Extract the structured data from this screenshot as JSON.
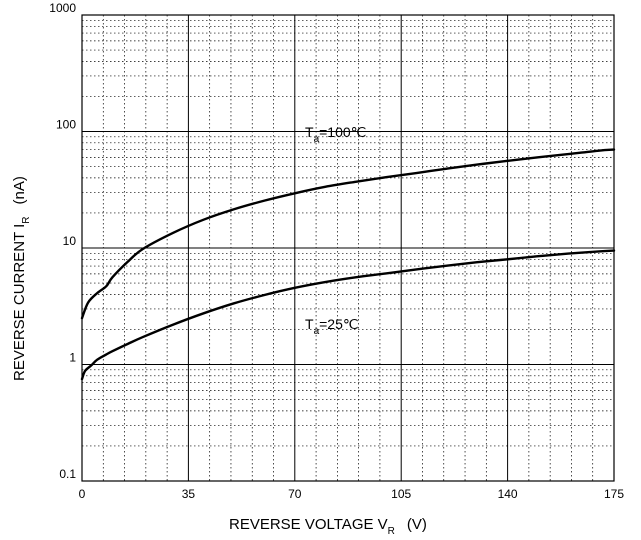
{
  "chart_data": {
    "type": "line",
    "x_scale": "linear",
    "y_scale": "log",
    "xlim": [
      0,
      175
    ],
    "ylim": [
      0.1,
      1000
    ],
    "grid": true,
    "x_ticks": [
      {
        "value": 0,
        "label": "0"
      },
      {
        "value": 35,
        "label": "35"
      },
      {
        "value": 70,
        "label": "70"
      },
      {
        "value": 105,
        "label": "105"
      },
      {
        "value": 140,
        "label": "140"
      },
      {
        "value": 175,
        "label": "175"
      }
    ],
    "y_ticks": [
      {
        "value": 0.1,
        "label": "0.1"
      },
      {
        "value": 1,
        "label": "1"
      },
      {
        "value": 10,
        "label": "10"
      },
      {
        "value": 100,
        "label": "100"
      },
      {
        "value": 1000,
        "label": "1000"
      }
    ],
    "xlabel": {
      "main": "REVERSE VOLTAGE   V",
      "sub": "R",
      "unit": "(V)"
    },
    "ylabel": {
      "main": "REVERSE CURRENT   I",
      "sub": "R",
      "unit": "(nA)"
    },
    "series": [
      {
        "label_main": "T",
        "label_sub": "a",
        "label_rest": "=100℃",
        "x": [
          0,
          2,
          5,
          8,
          10,
          15,
          20,
          30,
          40,
          50,
          60,
          70,
          80,
          90,
          100,
          110,
          120,
          130,
          140,
          150,
          160,
          170,
          175
        ],
        "y": [
          2.5,
          3.4,
          4.1,
          4.7,
          5.6,
          7.6,
          9.8,
          13.5,
          17.5,
          21.5,
          25.5,
          29.5,
          33.5,
          37,
          40.5,
          44,
          48,
          52,
          56,
          60,
          64,
          68.5,
          70
        ]
      },
      {
        "label_main": "T",
        "label_sub": "a",
        "label_rest": "=25℃",
        "x": [
          0,
          1,
          3,
          5,
          8,
          10,
          15,
          20,
          30,
          40,
          50,
          60,
          70,
          80,
          90,
          100,
          110,
          120,
          130,
          140,
          150,
          160,
          170,
          175
        ],
        "y": [
          0.75,
          0.88,
          0.98,
          1.1,
          1.22,
          1.3,
          1.5,
          1.72,
          2.2,
          2.75,
          3.35,
          3.95,
          4.55,
          5.1,
          5.6,
          6.05,
          6.55,
          7.05,
          7.55,
          8.0,
          8.5,
          8.95,
          9.35,
          9.5
        ]
      }
    ]
  }
}
